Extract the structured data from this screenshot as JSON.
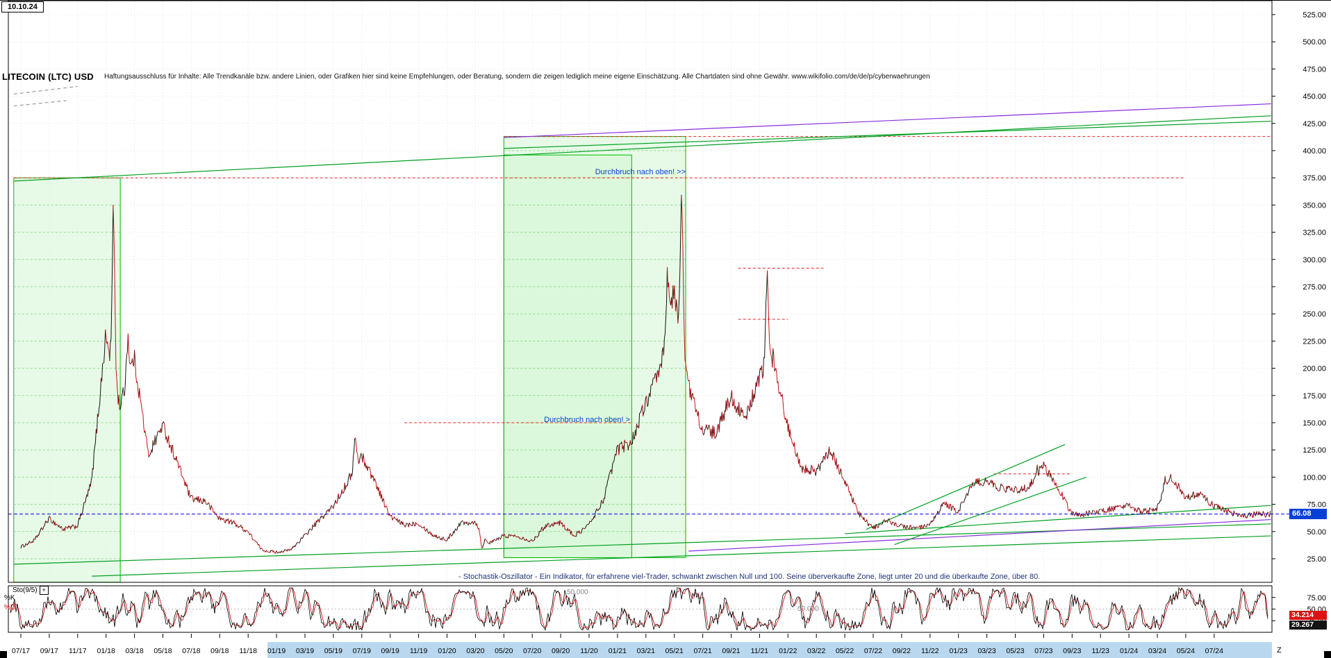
{
  "window": {
    "date_label": "10.10.24"
  },
  "header": {
    "title": "LITECOIN (LTC) USD",
    "disclaimer": "Haftungsausschluss für Inhalte: Alle Trendkanäle bzw. andere Linien, oder Grafiken hier sind keine Empfehlungen, oder Beratung, sondern die zeigen lediglich meine eigene Einschätzung. Alle Chartdaten sind ohne Gewähr.  www.wikifolio.com/de/de/p/cyberwaehrungen"
  },
  "annotations": {
    "breakout_upper": "Durchbruch nach oben! >>",
    "breakout_lower": "Durchbruch nach oben! >",
    "stochastic_note": "- Stochastik-Oszillator - Ein Indikator, für erfahrene viel-Trader, schwankt zwischen Null und 100. Seine überverkaufte Zone, liegt unter 20 und die überkaufte Zone, über 80."
  },
  "price_axis": {
    "ticks": [
      "525.00",
      "500.00",
      "475.00",
      "450.00",
      "425.00",
      "400.00",
      "375.00",
      "350.00",
      "325.00",
      "300.00",
      "275.00",
      "250.00",
      "225.00",
      "200.00",
      "175.00",
      "150.00",
      "125.00",
      "100.00",
      "75.00",
      "50.00",
      "25.00"
    ]
  },
  "price_badge": {
    "value": "66.08"
  },
  "oscillator": {
    "label": "Sto(9/5)",
    "expand_button": "+",
    "k_label": "%K",
    "d_label": "%D",
    "axis_ticks": [
      "75.00",
      "50.00",
      "25.00"
    ],
    "d_value": "34.214",
    "k_value": "29.267",
    "inline_labels": [
      "50.000",
      "50.000"
    ]
  },
  "x_axis": {
    "labels": [
      "07/17",
      "09/17",
      "11/17",
      "01/18",
      "03/18",
      "05/18",
      "07/18",
      "09/18",
      "11/18",
      "01/19",
      "03/19",
      "05/19",
      "07/19",
      "09/19",
      "11/19",
      "01/20",
      "03/20",
      "05/20",
      "07/20",
      "09/20",
      "11/20",
      "01/21",
      "03/21",
      "05/21",
      "07/21",
      "09/21",
      "11/21",
      "01/22",
      "03/22",
      "05/22",
      "07/22",
      "09/22",
      "11/22",
      "01/23",
      "03/23",
      "05/23",
      "07/23",
      "09/23",
      "11/23",
      "01/24",
      "03/24",
      "05/24",
      "07/24"
    ],
    "end_label": "Z",
    "highlight_from": "01/19"
  },
  "chart_data": {
    "type": "candlestick",
    "title": "LITECOIN (LTC) USD",
    "x_unit": "months",
    "start": "07/17",
    "end": "10/24",
    "ylim": [
      0,
      525
    ],
    "monthly_closes": [
      42,
      62,
      52,
      55,
      95,
      230,
      165,
      210,
      120,
      148,
      115,
      80,
      78,
      62,
      58,
      50,
      33,
      31,
      33,
      46,
      60,
      73,
      95,
      120,
      95,
      64,
      56,
      58,
      47,
      42,
      58,
      59,
      39,
      46,
      46,
      41,
      56,
      58,
      46,
      56,
      78,
      125,
      132,
      168,
      197,
      270,
      185,
      144,
      140,
      175,
      152,
      192,
      210,
      146,
      109,
      105,
      124,
      98,
      66,
      53,
      60,
      55,
      53,
      55,
      76,
      68,
      94,
      96,
      90,
      88,
      91,
      110,
      92,
      66,
      66,
      69,
      71,
      73,
      68,
      71,
      100,
      82,
      84,
      74,
      68,
      64,
      66,
      66.08
    ],
    "monthly_highs": {
      "6": 375,
      "7": 248,
      "23": 146,
      "45": 320,
      "46": 412,
      "52": 292,
      "71": 115,
      "80": 112
    },
    "monthly_lows": {
      "32": 25
    },
    "current_price": 66.08,
    "green_boxes": [
      {
        "m1": -0.5,
        "m2": 7.0,
        "top": 375,
        "bottom": 3.5
      },
      {
        "m1": 34,
        "m2": 46.8,
        "top": 413,
        "bottom": 26
      },
      {
        "m1": 34,
        "m2": 43,
        "top": 396,
        "bottom": 26
      }
    ],
    "hlines": [
      {
        "price": 375,
        "m1": -0.5,
        "m2": 82,
        "color": "line_red",
        "dash": true
      },
      {
        "price": 413,
        "m1": 34,
        "m2": 88,
        "color": "line_red",
        "dash": true
      },
      {
        "price": 292,
        "m1": 50.5,
        "m2": 56.5,
        "color": "line_red",
        "dash": true
      },
      {
        "price": 245,
        "m1": 50.5,
        "m2": 54,
        "color": "line_red",
        "dash": true
      },
      {
        "price": 150,
        "m1": 27,
        "m2": 43,
        "color": "line_red",
        "dash": true
      },
      {
        "price": 103,
        "m1": 68.5,
        "m2": 74,
        "color": "line_red",
        "dash": true
      }
    ],
    "trendlines": [
      {
        "from": [
          -0.5,
          372
        ],
        "to": [
          88,
          432
        ],
        "color": "trend_green"
      },
      {
        "from": [
          34,
          402
        ],
        "to": [
          88,
          427
        ],
        "color": "trend_green"
      },
      {
        "from": [
          34,
          412
        ],
        "to": [
          88,
          443
        ],
        "color": "trend_purple"
      },
      {
        "from": [
          -0.5,
          20
        ],
        "to": [
          88,
          57
        ],
        "color": "trend_green"
      },
      {
        "from": [
          5,
          9
        ],
        "to": [
          88,
          46
        ],
        "color": "trend_green"
      },
      {
        "from": [
          47,
          32
        ],
        "to": [
          88,
          61
        ],
        "color": "trend_purple"
      },
      {
        "from": [
          59.5,
          52
        ],
        "to": [
          73.5,
          130
        ],
        "color": "trend_green"
      },
      {
        "from": [
          61.5,
          38
        ],
        "to": [
          75,
          100
        ],
        "color": "trend_green"
      },
      {
        "from": [
          58,
          48
        ],
        "to": [
          88,
          74
        ],
        "color": "trend_green"
      },
      {
        "from": [
          -0.5,
          452
        ],
        "to": [
          4,
          459
        ],
        "color": "trend_grey",
        "dash": true
      },
      {
        "from": [
          -0.5,
          441
        ],
        "to": [
          3.2,
          446
        ],
        "color": "trend_grey",
        "dash": true
      }
    ],
    "stochastic": {
      "k": 29.267,
      "d": 34.214,
      "range": [
        0,
        100
      ],
      "overbought": 80,
      "oversold": 20
    }
  },
  "colors": {
    "grid": "#e4e4e4",
    "box_fill": "#d4f5d4",
    "box_line": "#00bb00",
    "box_grid": "#8fdc8f",
    "candle_up": "#101010",
    "candle_down": "#cc1111",
    "line_red": "#ee2222",
    "trend_green": "#00a020",
    "trend_purple": "#8a2be2",
    "trend_grey": "#999999",
    "current_blue": "#0000ee",
    "badge_blue": "#0040d8",
    "badge_red": "#dd1111",
    "badge_dark": "#141414",
    "annotation_blue": "#0044cc",
    "note_blue": "#223377",
    "x_highlight": "#b9d8ef",
    "osc_k": "#000000",
    "osc_d": "#cc0000",
    "inline_grey": "#888888"
  }
}
